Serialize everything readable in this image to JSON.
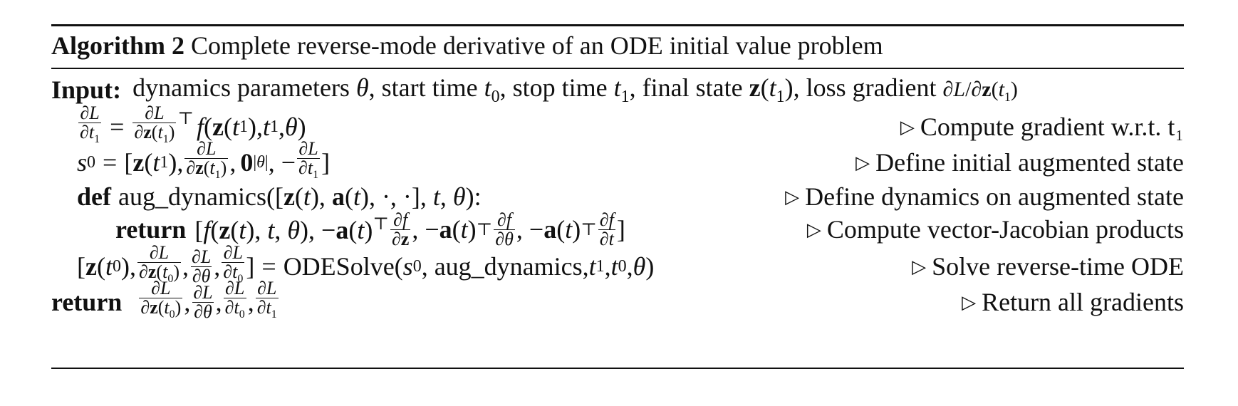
{
  "algorithm": {
    "label": "Algorithm 2",
    "caption": "Complete reverse-mode derivative of an ODE initial value problem"
  },
  "lines": [
    {
      "keyword": "Input:",
      "text": "dynamics parameters θ, start time t₀, stop time t₁, final state z(t₁), loss gradient ∂L/∂z(t₁)",
      "comment": ""
    },
    {
      "keyword": "",
      "text": "∂L/∂t₁ = ∂L/∂z(t₁)ᵀ f(z(t₁), t₁, θ)",
      "comment": "Compute gradient w.r.t. t₁"
    },
    {
      "keyword": "",
      "text": "s₀ = [z(t₁), ∂L/∂z(t₁), 0|θ|, −∂L/∂t₁]",
      "comment": "Define initial augmented state"
    },
    {
      "keyword": "def",
      "text": "aug_dynamics([z(t), a(t), ·, ·], t, θ):",
      "comment": "Define dynamics on augmented state"
    },
    {
      "keyword": "return",
      "text": "[f(z(t), t, θ), −a(t)ᵀ ∂f/∂z, −a(t)ᵀ ∂f/∂θ, −a(t)ᵀ ∂f/∂t]",
      "comment": "Compute vector-Jacobian products"
    },
    {
      "keyword": "",
      "text": "[z(t₀), ∂L/∂z(t₀), ∂L/∂θ, ∂L/∂t₀] = ODESolve(s₀, aug_dynamics, t₁, t₀, θ)",
      "comment": "Solve reverse-time ODE"
    },
    {
      "keyword": "return",
      "text": "∂L/∂z(t₀), ∂L/∂θ, ∂L/∂t₀, ∂L/∂t₁",
      "comment": "Return all gradients"
    }
  ]
}
